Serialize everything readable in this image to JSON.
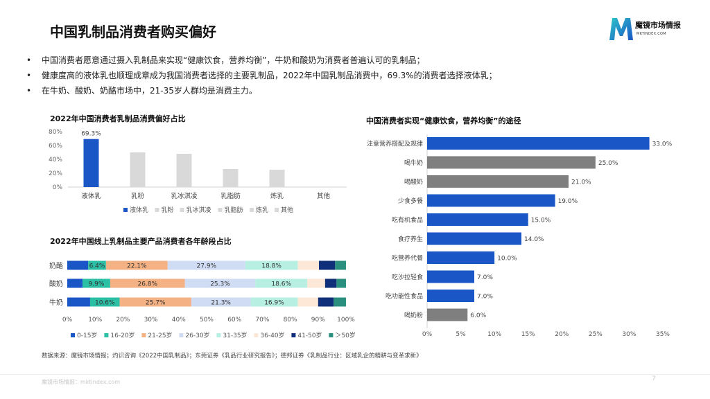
{
  "header": {
    "title": "中国乳制品消费者购买偏好",
    "logo_text": "魔镜市场情报",
    "logo_sub": "MKTINDEX.COM"
  },
  "bullets": [
    "中国消费者愿意通过摄入乳制品来实现“健康饮食，营养均衡”，牛奶和酸奶为消费者普遍认可的乳制品；",
    "健康度高的液体乳也顺理成章成为我国消费者选择的主要乳制品，2022年中国乳制品消费中，69.3%的消费者选择液体乳；",
    "在牛奶、酸奶、奶酪市场中，21-35岁人群均是消费主力。"
  ],
  "bullet_symbol": "•",
  "chart_data": [
    {
      "type": "bar",
      "title": "2022年中国消费者乳制品消费偏好占比",
      "categories": [
        "液体乳",
        "乳粉",
        "乳冰淇凌",
        "乳脂肪",
        "炼乳",
        "其他"
      ],
      "values": [
        69.3,
        50,
        48,
        26,
        25,
        0
      ],
      "data_labels": [
        "69.3%",
        "",
        "",
        "",
        "",
        ""
      ],
      "ylim": [
        0,
        80
      ],
      "yticks": [
        "0%",
        "20%",
        "40%",
        "60%",
        "80%"
      ],
      "ytick_values": [
        0,
        20,
        40,
        60,
        80
      ],
      "colors": [
        "#1a56c6",
        "#d9d9d9",
        "#d9d9d9",
        "#d9d9d9",
        "#d9d9d9",
        "#d9d9d9"
      ],
      "legend": [
        "液体乳",
        "乳粉",
        "乳冰淇凌",
        "乳脂肪",
        "炼乳",
        "其他"
      ],
      "legend_position": "bottom"
    },
    {
      "type": "bar",
      "orientation": "horizontal",
      "stacked": true,
      "title": "2022年中国线上乳制品主要产品消费者各年龄段占比",
      "categories": [
        "奶酪",
        "酸奶",
        "牛奶"
      ],
      "series": [
        {
          "name": "0-15岁",
          "color": "#1a56c6",
          "values": [
            7.5,
            5.5,
            8.2
          ],
          "labels": [
            "",
            "",
            ""
          ]
        },
        {
          "name": "16-20岁",
          "color": "#2bbfa5",
          "values": [
            6.4,
            9.9,
            10.6
          ],
          "labels": [
            "6.4%",
            "9.9%",
            "10.6%"
          ]
        },
        {
          "name": "21-25岁",
          "color": "#f4b183",
          "values": [
            22.1,
            26.8,
            25.7
          ],
          "labels": [
            "22.1%",
            "26.8%",
            "25.7%"
          ]
        },
        {
          "name": "26-30岁",
          "color": "#cfdcf4",
          "values": [
            27.9,
            25.3,
            21.3
          ],
          "labels": [
            "27.9%",
            "25.3%",
            "21.3%"
          ]
        },
        {
          "name": "31-35岁",
          "color": "#b7efe3",
          "values": [
            18.8,
            18.6,
            16.9
          ],
          "labels": [
            "18.8%",
            "18.6%",
            "16.9%"
          ]
        },
        {
          "name": "36-40岁",
          "color": "#fde8d8",
          "values": [
            7.6,
            6.4,
            7.3
          ],
          "labels": [
            "",
            "",
            ""
          ]
        },
        {
          "name": "41-50岁",
          "color": "#0f2f7a",
          "values": [
            5.8,
            4.1,
            5.6
          ],
          "labels": [
            "",
            "",
            ""
          ]
        },
        {
          "name": "＞50岁",
          "color": "#2a8f7e",
          "values": [
            3.9,
            3.4,
            4.4
          ],
          "labels": [
            "",
            "",
            ""
          ]
        }
      ],
      "xlim": [
        0,
        100
      ],
      "xticks": [
        "0%",
        "10%",
        "20%",
        "30%",
        "40%",
        "50%",
        "60%",
        "70%",
        "80%",
        "90%",
        "100%"
      ],
      "xtick_values": [
        0,
        10,
        20,
        30,
        40,
        50,
        60,
        70,
        80,
        90,
        100
      ],
      "legend_position": "bottom"
    },
    {
      "type": "bar",
      "orientation": "horizontal",
      "title": "中国消费者实现“健康饮食，营养均衡”的途径",
      "categories": [
        "注意营养搭配及规律",
        "喝牛奶",
        "喝酸奶",
        "少食多餐",
        "吃有机食品",
        "食疗养生",
        "吃营养代餐",
        "吃沙拉轻食",
        "吃功能性食品",
        "喝奶粉"
      ],
      "values": [
        33.0,
        25.0,
        21.0,
        19.0,
        15.0,
        14.0,
        10.0,
        7.0,
        7.0,
        6.0
      ],
      "data_labels": [
        "33.0%",
        "25.0%",
        "21.0%",
        "19.0%",
        "15.0%",
        "14.0%",
        "10.0%",
        "7.0%",
        "7.0%",
        "6.0%"
      ],
      "colors": [
        "#1a56c6",
        "#7f7f7f",
        "#7f7f7f",
        "#1a56c6",
        "#1a56c6",
        "#1a56c6",
        "#1a56c6",
        "#1a56c6",
        "#1a56c6",
        "#7f7f7f"
      ],
      "xlim": [
        0,
        35
      ],
      "xticks": [
        "0%",
        "5%",
        "10%",
        "15%",
        "20%",
        "25%",
        "30%",
        "35%"
      ],
      "xtick_values": [
        0,
        5,
        10,
        15,
        20,
        25,
        30,
        35
      ]
    }
  ],
  "source": "数据来源：魔镜市场情报；灼识咨询《2022中国乳制品》；东莞证券《乳品行业研究报告》；德邦证券《乳制品行业：区域乳企的精耕与变革求新》",
  "footer": {
    "left": "魔镜市场情报：mktindex.com",
    "page": "7"
  }
}
